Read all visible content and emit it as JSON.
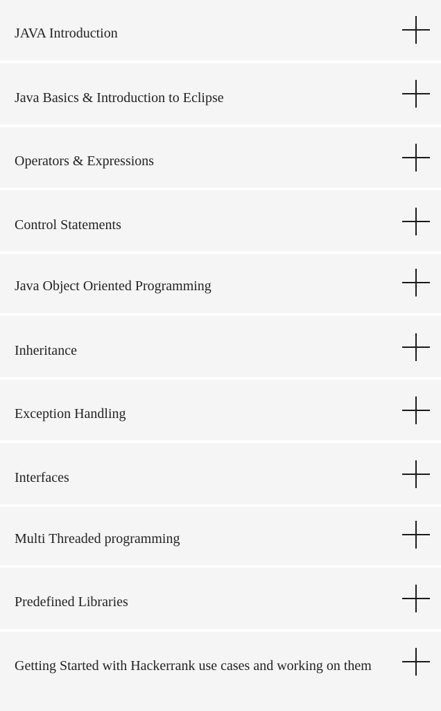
{
  "accordion": {
    "items": [
      {
        "label": "JAVA Introduction",
        "icon": "plus-icon"
      },
      {
        "label": "Java Basics & Introduction to Eclipse",
        "icon": "plus-icon"
      },
      {
        "label": "Operators & Expressions",
        "icon": "plus-icon"
      },
      {
        "label": "Control Statements",
        "icon": "plus-icon"
      },
      {
        "label": "Java Object Oriented Programming",
        "icon": "plus-icon"
      },
      {
        "label": "Inheritance",
        "icon": "plus-icon"
      },
      {
        "label": "Exception Handling",
        "icon": "plus-icon"
      },
      {
        "label": "Interfaces",
        "icon": "plus-icon"
      },
      {
        "label": "Multi Threaded programming",
        "icon": "plus-icon"
      },
      {
        "label": "Predefined Libraries",
        "icon": "plus-icon"
      },
      {
        "label": "Getting Started with Hackerrank use cases and working on them",
        "icon": "plus-icon"
      }
    ]
  },
  "colors": {
    "item_background": "#f5f5f5",
    "separator": "#ffffff",
    "text": "#222222"
  }
}
